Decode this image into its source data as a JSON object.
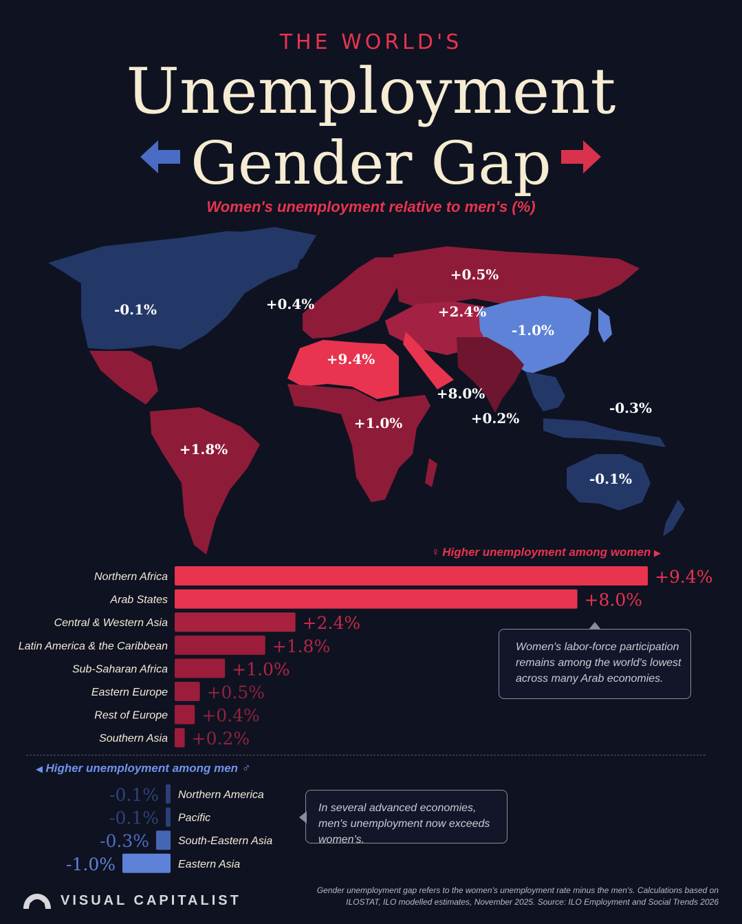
{
  "header": {
    "kicker": "THE WORLD'S",
    "title_line1": "Unemployment",
    "title_line2": "Gender Gap",
    "subtitle": "Women's unemployment relative to men's (%)"
  },
  "colors": {
    "background": "#0f1221",
    "women_high": "#e8344e",
    "women_mid": "#9c1d3b",
    "women_low": "#7a1830",
    "men_low": "#223466",
    "men_high": "#5d82d8",
    "text": "#f3ecd8"
  },
  "map_labels": [
    {
      "region": "Northern America",
      "value": "-0.1%"
    },
    {
      "region": "Rest of Europe",
      "value": "+0.4%"
    },
    {
      "region": "Eastern Europe",
      "value": "+0.5%"
    },
    {
      "region": "Central & Western Asia",
      "value": "+2.4%"
    },
    {
      "region": "Eastern Asia",
      "value": "-1.0%"
    },
    {
      "region": "Northern Africa",
      "value": "+9.4%"
    },
    {
      "region": "Arab States",
      "value": "+8.0%"
    },
    {
      "region": "Southern Asia",
      "value": "+0.2%"
    },
    {
      "region": "South-Eastern Asia",
      "value": "-0.3%"
    },
    {
      "region": "Sub-Saharan Africa",
      "value": "+1.0%"
    },
    {
      "region": "Latin America & the Caribbean",
      "value": "+1.8%"
    },
    {
      "region": "Pacific",
      "value": "-0.1%"
    }
  ],
  "legend": {
    "women": "Higher unemployment among women",
    "men": "Higher unemployment among men",
    "female_symbol": "♀",
    "male_symbol": "♂"
  },
  "chart_data": {
    "type": "bar",
    "orientation": "horizontal",
    "unit": "percentage points",
    "series": [
      {
        "name": "Higher unemployment among women",
        "categories": [
          "Northern Africa",
          "Arab States",
          "Central & Western Asia",
          "Latin America & the Caribbean",
          "Sub-Saharan Africa",
          "Eastern Europe",
          "Rest of Europe",
          "Southern Asia"
        ],
        "values": [
          9.4,
          8.0,
          2.4,
          1.8,
          1.0,
          0.5,
          0.4,
          0.2
        ],
        "labels": [
          "+9.4%",
          "+8.0%",
          "+2.4%",
          "+1.8%",
          "+1.0%",
          "+0.5%",
          "+0.4%",
          "+0.2%"
        ]
      },
      {
        "name": "Higher unemployment among men",
        "categories": [
          "Northern America",
          "Pacific",
          "South-Eastern Asia",
          "Eastern Asia"
        ],
        "values": [
          -0.1,
          -0.1,
          -0.3,
          -1.0
        ],
        "labels": [
          "-0.1%",
          "-0.1%",
          "-0.3%",
          "-1.0%"
        ]
      }
    ]
  },
  "notes": {
    "arab": "Women's labor-force participation remains among the world's lowest across many Arab economies.",
    "advanced": "In several advanced economies, men's unemployment now exceeds women's."
  },
  "footer": {
    "footnote": "Gender unemployment gap refers to the women's unemployment rate minus the men's. Calculations based on ILOSTAT, ILO modelled estimates, November 2025. Source: ILO Employment and Social Trends 2026",
    "brand": "VISUAL CAPITALIST"
  }
}
